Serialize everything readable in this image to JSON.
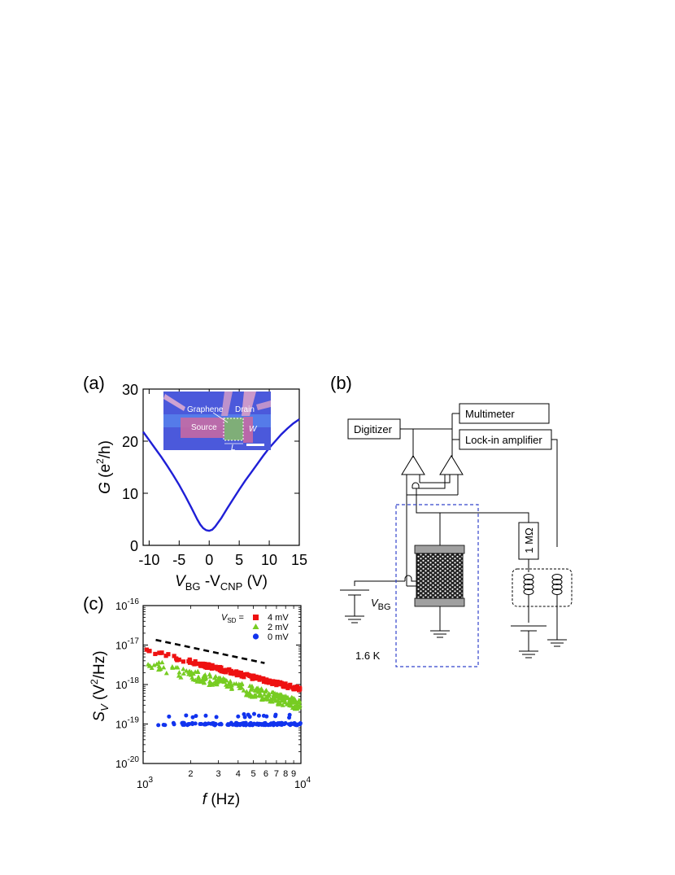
{
  "panels": {
    "a": "(a)",
    "b": "(b)",
    "c": "(c)"
  },
  "inset": {
    "graphene": "Graphene",
    "drain": "Drain",
    "source": "Source",
    "w": "W",
    "l": "L"
  },
  "circuit": {
    "digitizer": "Digitizer",
    "multimeter": "Multimeter",
    "lockin": "Lock-in amplifier",
    "resistor": "1 MΩ",
    "vbg_main": "V",
    "vbg_sub": "BG",
    "temperature": "1.6 K"
  },
  "colors": {
    "curve_a": "#1f1fd6",
    "series_4mV": "#ee1111",
    "series_2mV": "#77cc22",
    "series_0mV": "#1133ee",
    "dashed_box": "#3344cc"
  },
  "chart_data": [
    {
      "panel": "(a)",
      "type": "line",
      "xlabel_main": "V",
      "xlabel_sub1": "BG",
      "xlabel_mid": " -V",
      "xlabel_sub2": "CNP",
      "xlabel_unit": " (V)",
      "ylabel_main": "G",
      "ylabel_unit": " (e",
      "ylabel_sup": "2",
      "ylabel_end": "/h)",
      "xlim": [
        -11,
        15
      ],
      "ylim": [
        0,
        30
      ],
      "xticks": [
        "-10",
        "-5",
        "0",
        "5",
        "10",
        "15"
      ],
      "xtick_values": [
        -10,
        -5,
        0,
        5,
        10,
        15
      ],
      "yticks": [
        "0",
        "10",
        "20",
        "30"
      ],
      "ytick_values": [
        0,
        10,
        20,
        30
      ],
      "x": [
        -11,
        -10,
        -9,
        -8,
        -7,
        -6,
        -5,
        -4,
        -3,
        -2,
        -1.5,
        -1,
        -0.5,
        0,
        0.5,
        1,
        2,
        3,
        4,
        5,
        6,
        7,
        8,
        9,
        10,
        11,
        12,
        13,
        14,
        15
      ],
      "y": [
        21.8,
        20.2,
        18.6,
        17.0,
        15.3,
        13.5,
        11.6,
        9.5,
        7.3,
        5.0,
        4.0,
        3.3,
        2.9,
        2.8,
        3.0,
        3.6,
        5.2,
        7.1,
        8.9,
        10.7,
        12.4,
        14.0,
        15.6,
        17.2,
        18.7,
        20.0,
        21.3,
        22.4,
        23.4,
        24.2
      ],
      "grid": false
    },
    {
      "panel": "(c)",
      "type": "scatter",
      "xscale": "log",
      "yscale": "log",
      "xlabel_main": "f",
      "xlabel_unit": " (Hz)",
      "ylabel_main": "S",
      "ylabel_sub": "V",
      "ylabel_unit": " (V",
      "ylabel_sup": "2",
      "ylabel_end": "/Hz)",
      "xlim": [
        1000,
        10000
      ],
      "ylim": [
        1e-20,
        1e-16
      ],
      "yticks": [
        {
          "base": "10",
          "exp": "-16"
        },
        {
          "base": "10",
          "exp": "-17"
        },
        {
          "base": "10",
          "exp": "-18"
        },
        {
          "base": "10",
          "exp": "-19"
        },
        {
          "base": "10",
          "exp": "-20"
        }
      ],
      "ytick_values": [
        -16,
        -17,
        -18,
        -19,
        -20
      ],
      "xticks_major": [
        {
          "base": "10",
          "exp": "3"
        },
        {
          "base": "10",
          "exp": "4"
        }
      ],
      "xtick_minor_labels": [
        "2",
        "3",
        "4",
        "5",
        "6",
        "7",
        "8",
        "9"
      ],
      "xtick_minor_values": [
        2000,
        3000,
        4000,
        5000,
        6000,
        7000,
        8000,
        9000
      ],
      "legend_title_main": "V",
      "legend_title_sub": "SD",
      "legend_title_end": " =",
      "legend_position": "top-right",
      "series": [
        {
          "name": "4 mV",
          "marker": "square",
          "logf": [
            3.0,
            3.1,
            3.2,
            3.3,
            3.4,
            3.5,
            3.6,
            3.7,
            3.8,
            3.9,
            4.0
          ],
          "values": [
            8e-18,
            6e-18,
            4.8e-18,
            3.8e-18,
            3e-18,
            2.4e-18,
            1.9e-18,
            1.5e-18,
            1.2e-18,
            9.5e-19,
            7.5e-19
          ]
        },
        {
          "name": "2 mV",
          "marker": "triangle",
          "logf": [
            3.0,
            3.1,
            3.2,
            3.3,
            3.4,
            3.5,
            3.6,
            3.7,
            3.8,
            3.9,
            4.0
          ],
          "values": [
            4e-18,
            3e-18,
            2.3e-18,
            1.8e-18,
            1.4e-18,
            1.1e-18,
            8.5e-19,
            6.5e-19,
            5e-19,
            3.8e-19,
            3e-19
          ]
        },
        {
          "name": "0 mV",
          "marker": "circle",
          "logf": [
            3.0,
            3.2,
            3.4,
            3.6,
            3.8,
            4.0
          ],
          "values": [
            1e-19,
            1e-19,
            1e-19,
            1e-19,
            1e-19,
            1e-19
          ]
        }
      ],
      "reference_line": {
        "style": "dashed",
        "logf": [
          3.08,
          3.77
        ],
        "values": [
          1.35e-17,
          3.5e-18
        ]
      },
      "grid": false
    }
  ]
}
